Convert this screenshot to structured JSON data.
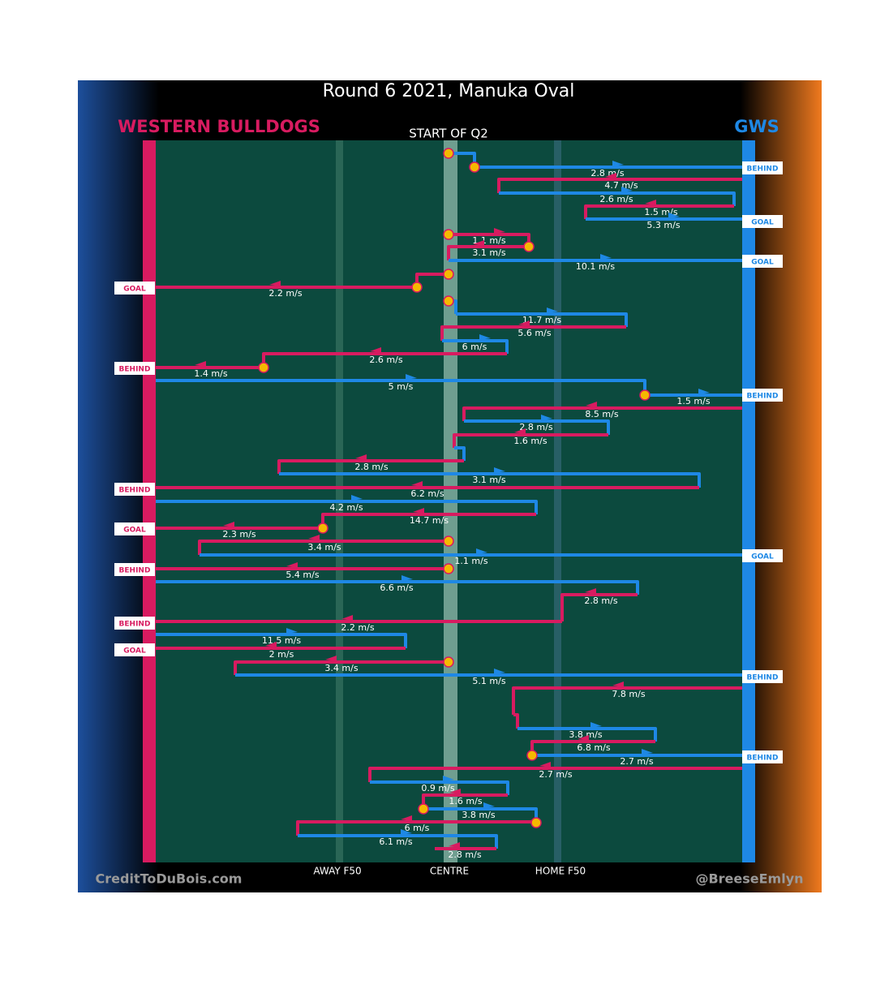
{
  "title": "Round 6 2021, Manuka Oval",
  "teams": {
    "left": "WESTERN BULLDOGS",
    "right": "GWS"
  },
  "period": "START OF Q2",
  "zones": [
    "AWAY F50",
    "CENTRE",
    "HOME F50"
  ],
  "credits": [
    "CreditToDuBois.com",
    "@BreeseEmlyn"
  ],
  "speeds": [
    "2.8 m/s",
    "4.7 m/s",
    "2.6 m/s",
    "1.5 m/s",
    "5.3 m/s",
    "1.1 m/s",
    "3.1 m/s",
    "10.1 m/s",
    "2.2 m/s",
    "11.7 m/s",
    "5.6 m/s",
    "6 m/s",
    "2.6 m/s",
    "1.4 m/s",
    "5 m/s",
    "1.5 m/s",
    "8.5 m/s",
    "2.8 m/s",
    "1.6 m/s",
    "2.8 m/s",
    "3.1 m/s",
    "6.2 m/s",
    "4.2 m/s",
    "14.7 m/s",
    "2.3 m/s",
    "3.4 m/s",
    "1.1 m/s",
    "5.4 m/s",
    "6.6 m/s",
    "2.8 m/s",
    "2.2 m/s",
    "11.5 m/s",
    "2 m/s",
    "3.4 m/s",
    "5.1 m/s",
    "7.8 m/s",
    "3.8 m/s",
    "6.8 m/s",
    "2.7 m/s",
    "2.7 m/s",
    "0.9 m/s",
    "1.6 m/s",
    "3.8 m/s",
    "6 m/s",
    "6.1 m/s",
    "2.8 m/s"
  ],
  "outcomes": [
    "BEHIND",
    "GOAL",
    "GOAL",
    "GOAL",
    "BEHIND",
    "BEHIND",
    "BEHIND",
    "GOAL",
    "GOAL",
    "BEHIND",
    "BEHIND",
    "GOAL",
    "BEHIND",
    "BEHIND"
  ]
}
